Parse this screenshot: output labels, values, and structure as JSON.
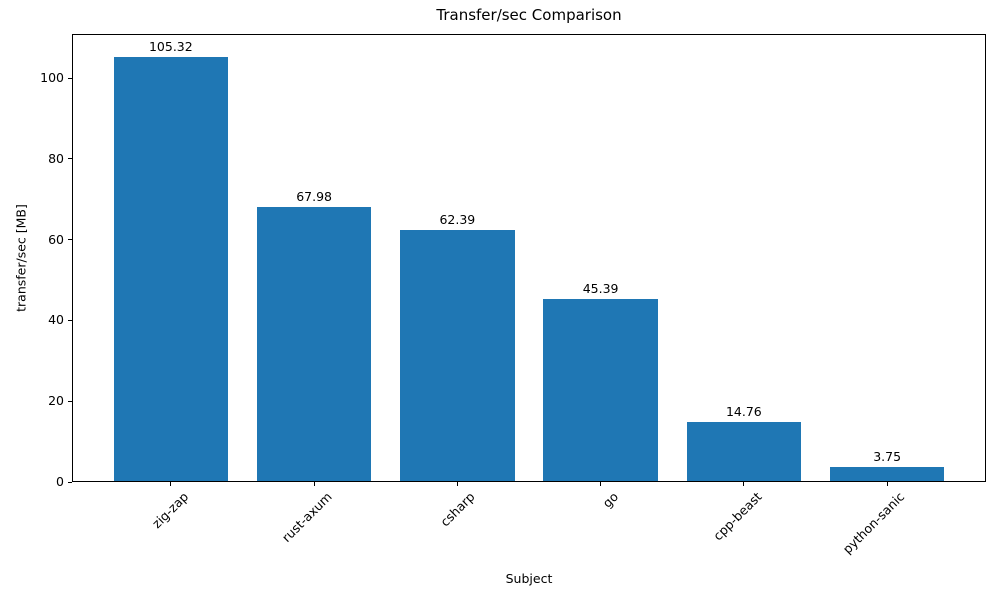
{
  "chart_data": {
    "type": "bar",
    "title": "Transfer/sec Comparison",
    "xlabel": "Subject",
    "ylabel": "transfer/sec [MB]",
    "categories": [
      "zig-zap",
      "rust-axum",
      "csharp",
      "go",
      "cpp-beast",
      "python-sanic"
    ],
    "values": [
      105.32,
      67.98,
      62.39,
      45.39,
      14.76,
      3.75
    ],
    "value_labels": [
      "105.32",
      "67.98",
      "62.39",
      "45.39",
      "14.76",
      "3.75"
    ],
    "yticks": [
      0,
      20,
      40,
      60,
      80,
      100
    ],
    "ylim": [
      0,
      110.9
    ],
    "bar_color": "#1f77b4",
    "bar_width_fraction": 0.8,
    "grid": false,
    "legend_position": "none",
    "xtick_rotation_deg": 45
  }
}
